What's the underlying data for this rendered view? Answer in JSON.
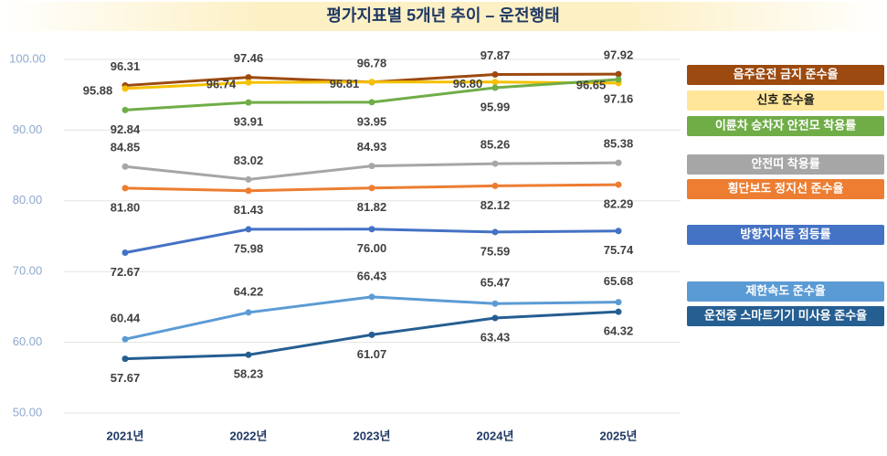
{
  "chart_data": {
    "type": "line",
    "title": "평가지표별 5개년 추이 – 운전행태",
    "categories": [
      "2021년",
      "2022년",
      "2023년",
      "2024년",
      "2025년"
    ],
    "ylim": [
      50,
      100
    ],
    "yticks": [
      {
        "value": 50,
        "label": "50.00"
      },
      {
        "value": 60,
        "label": "60.00"
      },
      {
        "value": 70,
        "label": "70.00"
      },
      {
        "value": 80,
        "label": "80.00"
      },
      {
        "value": 90,
        "label": "90.00"
      },
      {
        "value": 100,
        "label": "100.00"
      }
    ],
    "grid": true,
    "series": [
      {
        "name": "음주운전 금지 준수율",
        "color": "#9c4a0f",
        "values": [
          96.31,
          97.46,
          96.78,
          97.87,
          97.92
        ],
        "value_labels": [
          "96.31",
          "97.46",
          "96.78",
          "97.87",
          "97.92"
        ]
      },
      {
        "name": "신호 준수율",
        "color": "#f5c000",
        "values": [
          95.88,
          96.74,
          96.81,
          96.8,
          96.65
        ],
        "value_labels": [
          "95.88",
          "96.74",
          "96.81",
          "96.80",
          "96.65"
        ]
      },
      {
        "name": "이륜차 승차자 안전모 착용률",
        "color": "#70ad47",
        "values": [
          92.84,
          93.91,
          93.95,
          95.99,
          97.16
        ],
        "value_labels": [
          "92.84",
          "93.91",
          "93.95",
          "95.99",
          "97.16"
        ]
      },
      {
        "name": "안전띠 착용률",
        "color": "#a6a6a6",
        "values": [
          84.85,
          83.02,
          84.93,
          85.26,
          85.38
        ],
        "value_labels": [
          "84.85",
          "83.02",
          "84.93",
          "85.26",
          "85.38"
        ]
      },
      {
        "name": "횡단보도 정지선 준수율",
        "color": "#ed7d31",
        "values": [
          81.8,
          81.43,
          81.82,
          82.12,
          82.29
        ],
        "value_labels": [
          "81.80",
          "81.43",
          "81.82",
          "82.12",
          "82.29"
        ]
      },
      {
        "name": "방향지시등 점등률",
        "color": "#4472c4",
        "values": [
          72.67,
          75.98,
          76.0,
          75.59,
          75.74
        ],
        "value_labels": [
          "72.67",
          "75.98",
          "76.00",
          "75.59",
          "75.74"
        ]
      },
      {
        "name": "제한속도 준수율",
        "color": "#5b9bd5",
        "values": [
          60.44,
          64.22,
          66.43,
          65.47,
          65.68
        ],
        "value_labels": [
          "60.44",
          "64.22",
          "66.43",
          "65.47",
          "65.68"
        ]
      },
      {
        "name": "운전중 스마트기기 미사용 준수율",
        "color": "#255e91",
        "values": [
          57.67,
          58.23,
          61.07,
          63.43,
          64.32
        ],
        "value_labels": [
          "57.67",
          "58.23",
          "61.07",
          "63.43",
          "64.32"
        ]
      }
    ]
  }
}
